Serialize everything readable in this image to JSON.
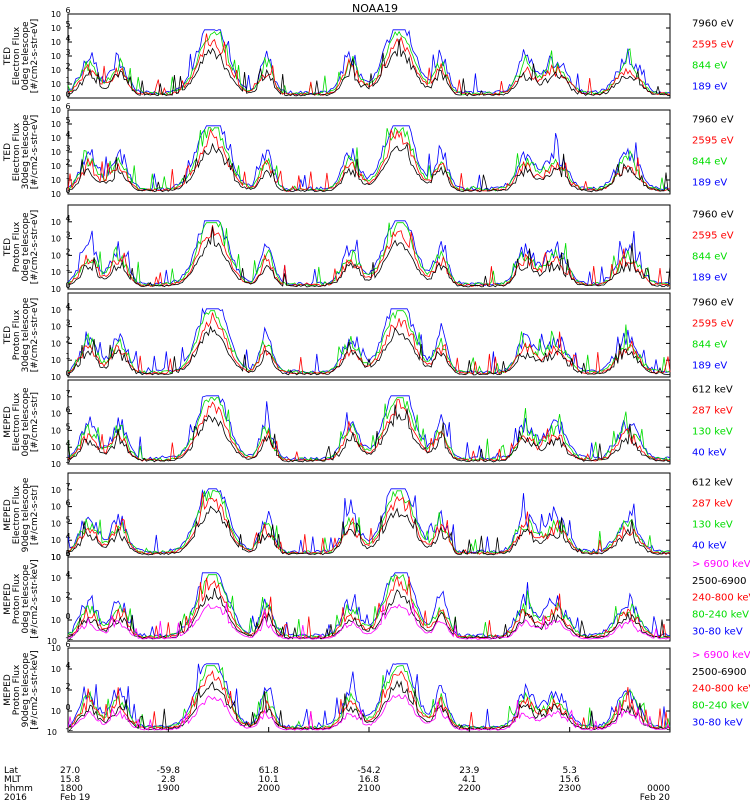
{
  "title": "NOAA19",
  "colors": {
    "blue": "#0000ff",
    "red": "#ff0000",
    "green": "#00dd00",
    "black": "#000000",
    "magenta": "#ff00ff"
  },
  "chart_data": [
    {
      "type": "line",
      "ylabel": [
        "TED",
        "Electron Flux",
        "0deg telescope",
        "[#/cm2-s-str-eV]"
      ],
      "ylim": [
        1,
        1000000
      ],
      "yscale": "log",
      "tick_exp": [
        0,
        1,
        2,
        3,
        4,
        5,
        6
      ],
      "series": [
        {
          "name": "7960 eV",
          "color": "#000000"
        },
        {
          "name": "2595 eV",
          "color": "#ff0000"
        },
        {
          "name": "844 eV",
          "color": "#00dd00"
        },
        {
          "name": "189 eV",
          "color": "#0000ff"
        }
      ]
    },
    {
      "type": "line",
      "ylabel": [
        "TED",
        "Electron Flux",
        "30deg telescope",
        "[#/cm2-s-str-eV]"
      ],
      "ylim": [
        1,
        1000000
      ],
      "yscale": "log",
      "tick_exp": [
        0,
        1,
        2,
        3,
        4,
        5,
        6
      ],
      "series": [
        {
          "name": "7960 eV",
          "color": "#000000"
        },
        {
          "name": "2595 eV",
          "color": "#ff0000"
        },
        {
          "name": "844 eV",
          "color": "#00dd00"
        },
        {
          "name": "189 eV",
          "color": "#0000ff"
        }
      ]
    },
    {
      "type": "line",
      "ylabel": [
        "TED",
        "Proton Flux",
        "0deg telescope",
        "[#/cm2-s-str-eV]"
      ],
      "ylim": [
        1,
        100000
      ],
      "yscale": "log",
      "tick_exp": [
        0,
        1,
        2,
        3,
        4
      ],
      "series": [
        {
          "name": "7960 eV",
          "color": "#000000"
        },
        {
          "name": "2595 eV",
          "color": "#ff0000"
        },
        {
          "name": "844 eV",
          "color": "#00dd00"
        },
        {
          "name": "189 eV",
          "color": "#0000ff"
        }
      ]
    },
    {
      "type": "line",
      "ylabel": [
        "TED",
        "Proton Flux",
        "30deg telescope",
        "[#/cm2-s-str-eV]"
      ],
      "ylim": [
        1,
        100000
      ],
      "yscale": "log",
      "tick_exp": [
        0,
        1,
        2,
        3,
        4
      ],
      "series": [
        {
          "name": "7960 eV",
          "color": "#000000"
        },
        {
          "name": "2595 eV",
          "color": "#ff0000"
        },
        {
          "name": "844 eV",
          "color": "#00dd00"
        },
        {
          "name": "189 eV",
          "color": "#0000ff"
        }
      ]
    },
    {
      "type": "line",
      "ylabel": [
        "MEPED",
        "Electron Flux",
        "0deg telescope",
        "[#/cm2-s-str]"
      ],
      "ylim": [
        1000,
        100000000
      ],
      "yscale": "log",
      "tick_exp": [
        3,
        4,
        5,
        6,
        7
      ],
      "series": [
        {
          "name": "612 keV",
          "color": "#000000"
        },
        {
          "name": "287 keV",
          "color": "#ff0000"
        },
        {
          "name": "130 keV",
          "color": "#00dd00"
        },
        {
          "name": "40 keV",
          "color": "#0000ff"
        }
      ]
    },
    {
      "type": "line",
      "ylabel": [
        "MEPED",
        "Electron Flux",
        "90deg telescope",
        "[#/cm2-s-str]"
      ],
      "ylim": [
        1000,
        100000000
      ],
      "yscale": "log",
      "tick_exp": [
        3,
        4,
        5,
        6,
        7
      ],
      "series": [
        {
          "name": "612 keV",
          "color": "#000000"
        },
        {
          "name": "287 keV",
          "color": "#ff0000"
        },
        {
          "name": "130 keV",
          "color": "#00dd00"
        },
        {
          "name": "40 keV",
          "color": "#0000ff"
        }
      ]
    },
    {
      "type": "line",
      "ylabel": [
        "MEPED",
        "Proton Flux",
        "0deg telescope",
        "[#/cm2-s-str-keV]"
      ],
      "ylim": [
        0.01,
        1000000
      ],
      "yscale": "log",
      "tick_exp": [
        -2,
        0,
        2,
        4,
        6
      ],
      "series": [
        {
          "name": "> 6900 keV",
          "color": "#ff00ff"
        },
        {
          "name": "2500-6900",
          "color": "#000000"
        },
        {
          "name": "240-800 keV",
          "color": "#ff0000"
        },
        {
          "name": "80-240 keV",
          "color": "#00dd00"
        },
        {
          "name": "30-80 keV",
          "color": "#0000ff"
        }
      ]
    },
    {
      "type": "line",
      "ylabel": [
        "MEPED",
        "Proton Flux",
        "90deg telescope",
        "[#/cm2-s-str-keV]"
      ],
      "ylim": [
        0.01,
        1000000
      ],
      "yscale": "log",
      "tick_exp": [
        -2,
        0,
        2,
        4,
        6
      ],
      "series": [
        {
          "name": "> 6900 keV",
          "color": "#ff00ff"
        },
        {
          "name": "2500-6900",
          "color": "#000000"
        },
        {
          "name": "240-800 keV",
          "color": "#ff0000"
        },
        {
          "name": "80-240 keV",
          "color": "#00dd00"
        },
        {
          "name": "30-80 keV",
          "color": "#0000ff"
        }
      ]
    }
  ],
  "x_axis": {
    "row_labels": [
      "Lat",
      "MLT",
      "hhmm",
      "2016"
    ],
    "ticks": [
      {
        "lat": "27.0",
        "mlt": "15.8",
        "hhmm": "1800",
        "date": "Feb 19"
      },
      {
        "lat": "-59.8",
        "mlt": "2.8",
        "hhmm": "1900",
        "date": ""
      },
      {
        "lat": "61.8",
        "mlt": "10.1",
        "hhmm": "2000",
        "date": ""
      },
      {
        "lat": "-54.2",
        "mlt": "16.8",
        "hhmm": "2100",
        "date": ""
      },
      {
        "lat": "23.9",
        "mlt": "4.1",
        "hhmm": "2200",
        "date": ""
      },
      {
        "lat": "5.3",
        "mlt": "15.6",
        "hhmm": "2300",
        "date": ""
      },
      {
        "lat": "",
        "mlt": "",
        "hhmm": "0000",
        "date": "Feb 20"
      }
    ]
  }
}
